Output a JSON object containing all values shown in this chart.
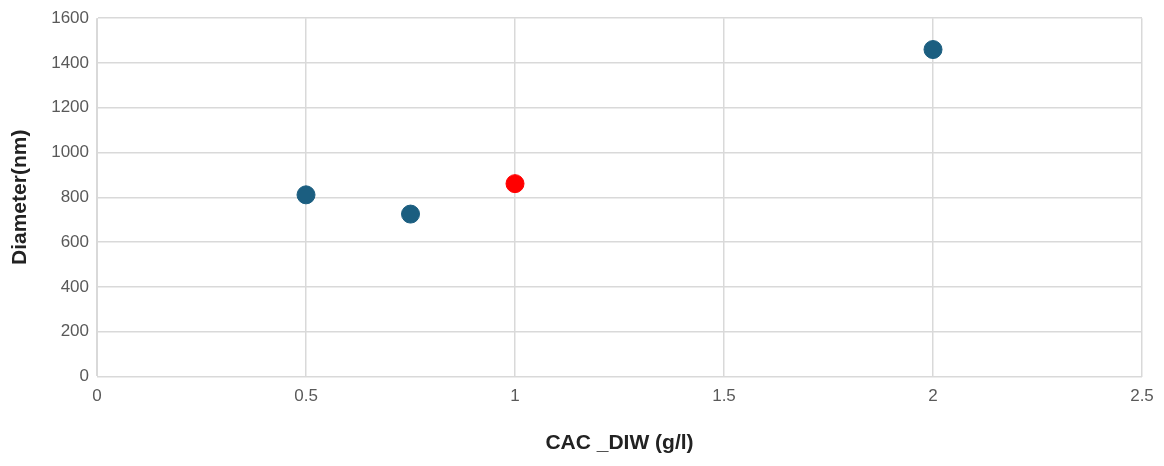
{
  "chart_data": {
    "type": "scatter",
    "xlabel": "CAC _DIW (g/l)",
    "ylabel": "Diameter(nm)",
    "x": [
      0.5,
      0.75,
      1,
      2
    ],
    "values": [
      811,
      725,
      861,
      1460
    ],
    "colors": [
      "#1b5e80",
      "#1b5e80",
      "#ff0000",
      "#1b5e80"
    ],
    "xlim": [
      0,
      2.5
    ],
    "xticks": [
      0,
      0.5,
      1,
      1.5,
      2,
      2.5
    ],
    "ylim": [
      0,
      1600
    ],
    "yticks": [
      0,
      200,
      400,
      600,
      800,
      1000,
      1200,
      1400,
      1600
    ],
    "grid": true,
    "marker": "circle",
    "legend": false
  }
}
